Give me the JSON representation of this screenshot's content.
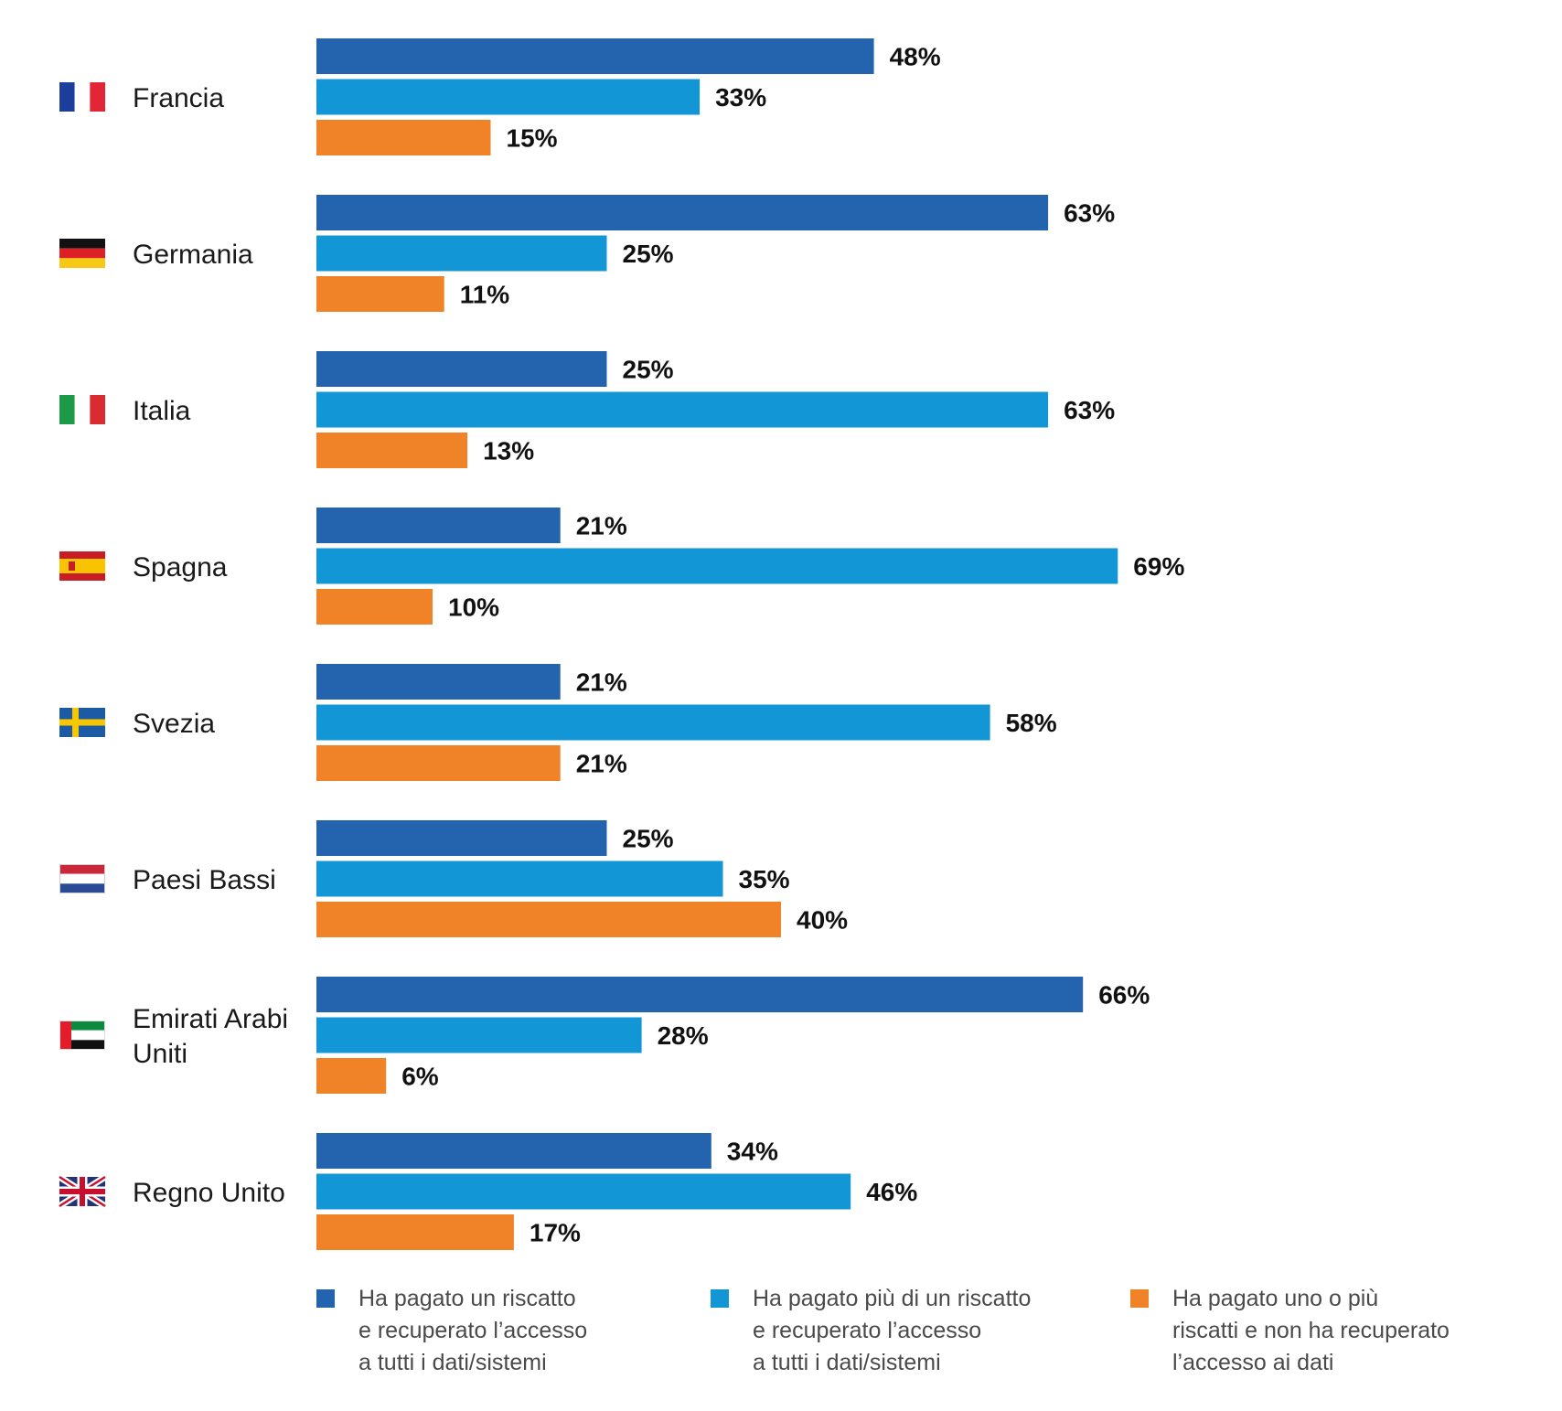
{
  "chart_data": {
    "type": "bar",
    "orientation": "horizontal",
    "categories": [
      [
        "Francia"
      ],
      [
        "Germania"
      ],
      [
        "Italia"
      ],
      [
        "Spagna"
      ],
      [
        "Svezia"
      ],
      [
        "Paesi Bassi"
      ],
      [
        "Emirati Arabi",
        "Uniti"
      ],
      [
        "Regno Unito"
      ]
    ],
    "flags": [
      "france-flag-icon",
      "germany-flag-icon",
      "italy-flag-icon",
      "spain-flag-icon",
      "sweden-flag-icon",
      "netherlands-flag-icon",
      "uae-flag-icon",
      "uk-flag-icon"
    ],
    "series": [
      {
        "legend_lines": [
          "Ha pagato un riscatto",
          "e recuperato l’accesso",
          "a tutti i dati/sistemi"
        ],
        "color": "#2463ae",
        "values": [
          48,
          63,
          25,
          21,
          21,
          25,
          66,
          34
        ],
        "labels": [
          "48%",
          "63%",
          "25%",
          "21%",
          "21%",
          "25%",
          "66%",
          "34%"
        ]
      },
      {
        "legend_lines": [
          "Ha pagato più di un riscatto",
          "e recuperato l’accesso",
          "a tutti i dati/sistemi"
        ],
        "color": "#1396d6",
        "values": [
          33,
          25,
          63,
          69,
          58,
          35,
          28,
          46
        ],
        "labels": [
          "33%",
          "25%",
          "63%",
          "69%",
          "58%",
          "35%",
          "28%",
          "46%"
        ]
      },
      {
        "legend_lines": [
          "Ha pagato uno o più",
          "riscatti e non ha recuperato",
          "l’accesso ai dati"
        ],
        "color": "#f08327",
        "values": [
          15,
          11,
          13,
          10,
          21,
          40,
          6,
          17
        ],
        "labels": [
          "15%",
          "11%",
          "13%",
          "10%",
          "21%",
          "40%",
          "6%",
          "17%"
        ]
      }
    ],
    "xlim": [
      0,
      100
    ],
    "grid": false,
    "legend_position": "bottom"
  }
}
